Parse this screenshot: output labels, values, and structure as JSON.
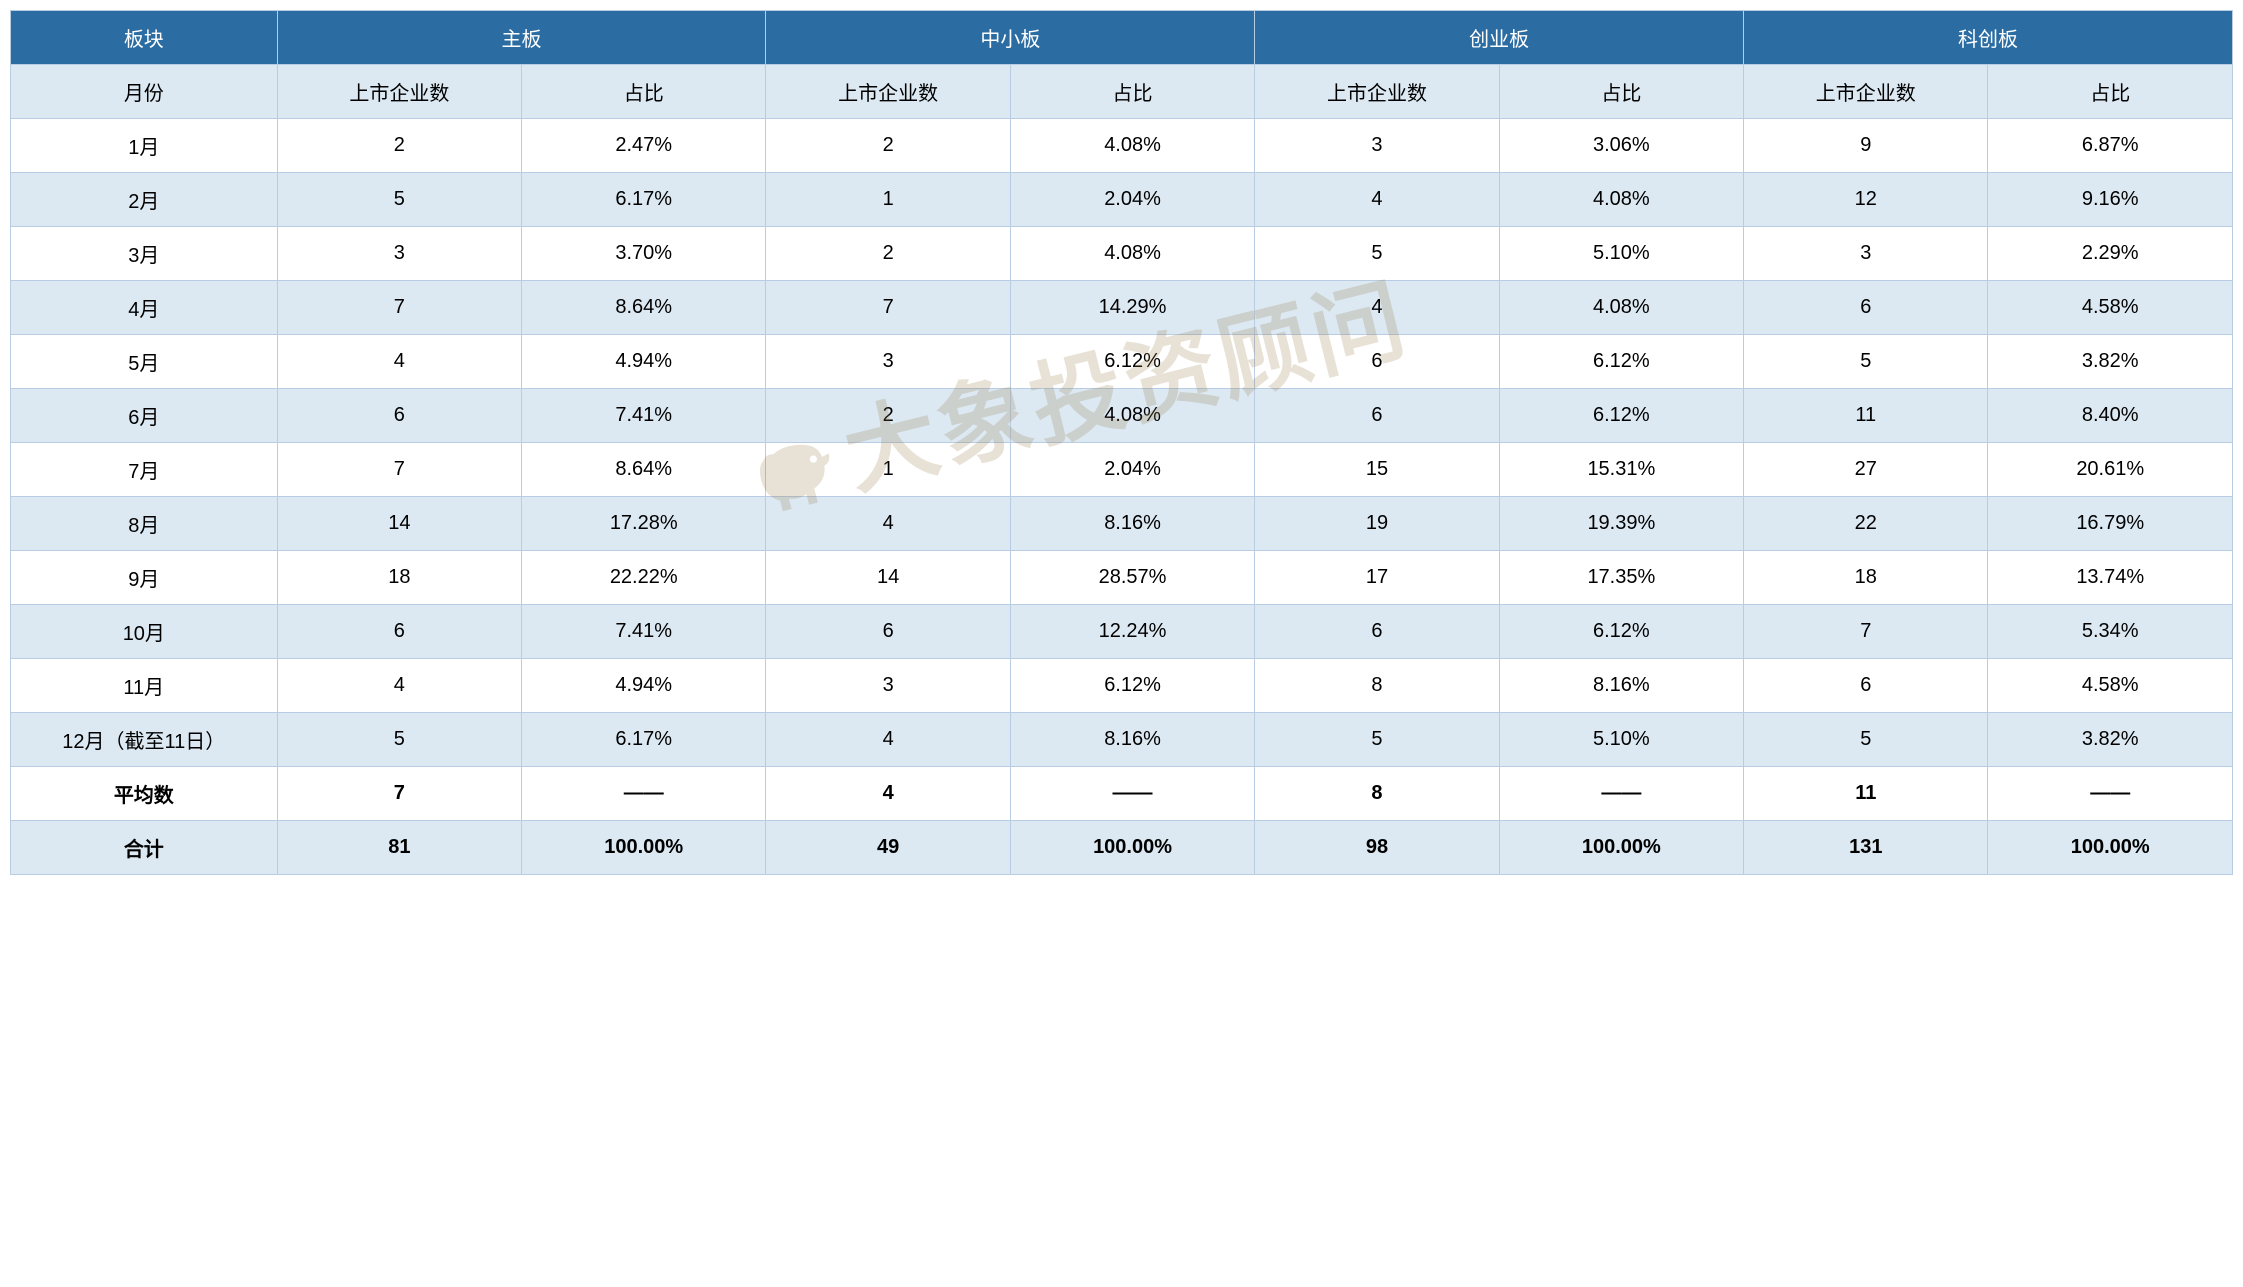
{
  "colors": {
    "header_bg": "#2b6ca3",
    "header_text": "#ffffff",
    "subheader_bg": "#dce9f2",
    "row_alt_bg": "#dce9f2",
    "row_bg": "#ffffff",
    "border": "#b8cce4",
    "watermark": "rgba(150,120,70,0.22)"
  },
  "header": {
    "corner": "板块",
    "boards": [
      "主板",
      "中小板",
      "创业板",
      "科创板"
    ],
    "month_label": "月份",
    "sub_count": "上市企业数",
    "sub_ratio": "占比"
  },
  "rows": [
    {
      "month": "1月",
      "b0c": "2",
      "b0r": "2.47%",
      "b1c": "2",
      "b1r": "4.08%",
      "b2c": "3",
      "b2r": "3.06%",
      "b3c": "9",
      "b3r": "6.87%"
    },
    {
      "month": "2月",
      "b0c": "5",
      "b0r": "6.17%",
      "b1c": "1",
      "b1r": "2.04%",
      "b2c": "4",
      "b2r": "4.08%",
      "b3c": "12",
      "b3r": "9.16%"
    },
    {
      "month": "3月",
      "b0c": "3",
      "b0r": "3.70%",
      "b1c": "2",
      "b1r": "4.08%",
      "b2c": "5",
      "b2r": "5.10%",
      "b3c": "3",
      "b3r": "2.29%"
    },
    {
      "month": "4月",
      "b0c": "7",
      "b0r": "8.64%",
      "b1c": "7",
      "b1r": "14.29%",
      "b2c": "4",
      "b2r": "4.08%",
      "b3c": "6",
      "b3r": "4.58%"
    },
    {
      "month": "5月",
      "b0c": "4",
      "b0r": "4.94%",
      "b1c": "3",
      "b1r": "6.12%",
      "b2c": "6",
      "b2r": "6.12%",
      "b3c": "5",
      "b3r": "3.82%"
    },
    {
      "month": "6月",
      "b0c": "6",
      "b0r": "7.41%",
      "b1c": "2",
      "b1r": "4.08%",
      "b2c": "6",
      "b2r": "6.12%",
      "b3c": "11",
      "b3r": "8.40%"
    },
    {
      "month": "7月",
      "b0c": "7",
      "b0r": "8.64%",
      "b1c": "1",
      "b1r": "2.04%",
      "b2c": "15",
      "b2r": "15.31%",
      "b3c": "27",
      "b3r": "20.61%"
    },
    {
      "month": "8月",
      "b0c": "14",
      "b0r": "17.28%",
      "b1c": "4",
      "b1r": "8.16%",
      "b2c": "19",
      "b2r": "19.39%",
      "b3c": "22",
      "b3r": "16.79%"
    },
    {
      "month": "9月",
      "b0c": "18",
      "b0r": "22.22%",
      "b1c": "14",
      "b1r": "28.57%",
      "b2c": "17",
      "b2r": "17.35%",
      "b3c": "18",
      "b3r": "13.74%"
    },
    {
      "month": "10月",
      "b0c": "6",
      "b0r": "7.41%",
      "b1c": "6",
      "b1r": "12.24%",
      "b2c": "6",
      "b2r": "6.12%",
      "b3c": "7",
      "b3r": "5.34%"
    },
    {
      "month": "11月",
      "b0c": "4",
      "b0r": "4.94%",
      "b1c": "3",
      "b1r": "6.12%",
      "b2c": "8",
      "b2r": "8.16%",
      "b3c": "6",
      "b3r": "4.58%"
    },
    {
      "month": "12月（截至11日）",
      "b0c": "5",
      "b0r": "6.17%",
      "b1c": "4",
      "b1r": "8.16%",
      "b2c": "5",
      "b2r": "5.10%",
      "b3c": "5",
      "b3r": "3.82%"
    }
  ],
  "avg": {
    "month": "平均数",
    "b0c": "7",
    "b0r": "——",
    "b1c": "4",
    "b1r": "——",
    "b2c": "8",
    "b2r": "——",
    "b3c": "11",
    "b3r": "——"
  },
  "total": {
    "month": "合计",
    "b0c": "81",
    "b0r": "100.00%",
    "b1c": "49",
    "b1r": "100.00%",
    "b2c": "98",
    "b2r": "100.00%",
    "b3c": "131",
    "b3r": "100.00%"
  },
  "watermark_text": "大象投资顾问"
}
